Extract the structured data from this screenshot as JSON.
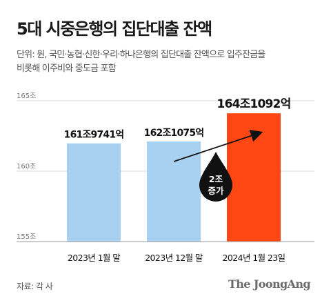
{
  "title": "5대 시중은행의 집단대출 잔액",
  "subtitle": {
    "line1": "단위: 원, 국민·농협·신한·우리·하나은행의 집단대출 잔액으로 입주잔금을",
    "line2": "비롯해 이주비와 중도금 포함"
  },
  "chart_data": {
    "type": "bar",
    "categories": [
      "2023년 1월 말",
      "2023년 12월 말",
      "2024년 1월 23일"
    ],
    "values": [
      161.9741,
      162.1075,
      164.1092
    ],
    "value_labels": [
      "161조9741억",
      "162조1075억",
      "164조1092억"
    ],
    "ylim": [
      155,
      165
    ],
    "y_ticks": [
      155,
      160,
      165
    ],
    "y_tick_labels": [
      "155조",
      "160조",
      "165조"
    ],
    "grid": true,
    "colors": [
      "#a8d0f0",
      "#a8d0f0",
      "#ff4713"
    ],
    "annotation": {
      "line1": "2조",
      "line2": "증가"
    }
  },
  "source": "자료: 각 사",
  "logo": "The JoongAng"
}
